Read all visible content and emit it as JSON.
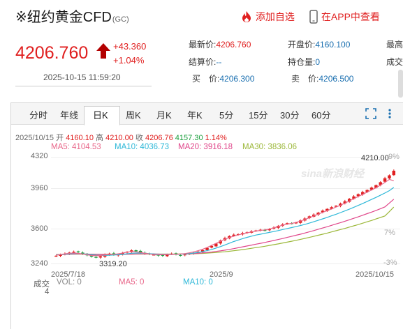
{
  "header": {
    "title": "※纽约黄金CFD",
    "code": "(GC)",
    "add_watch": "添加自选",
    "open_app": "在APP中查看"
  },
  "quote": {
    "price": "4206.760",
    "change": "+43.360",
    "change_pct": "+1.04%",
    "time": "2025-10-15 11:59:20"
  },
  "stats": {
    "latest_label": "最新价:",
    "latest": "4206.760",
    "open_label": "开盘价:",
    "open": "4160.100",
    "high_label": "最高",
    "settle_label": "结算价:",
    "settle": "--",
    "position_label": "持仓量:",
    "position": "0",
    "volume_label": "成交",
    "bid_label": "买　价:",
    "bid": "4206.300",
    "ask_label": "卖　价:",
    "ask": "4206.500"
  },
  "tabs": [
    "分时",
    "年线",
    "日K",
    "周K",
    "月K",
    "年K",
    "5分",
    "15分",
    "30分",
    "60分"
  ],
  "active_tab": "日K",
  "ohlc": {
    "date": "2025/10/15",
    "open_label": "开",
    "open": "4160.10",
    "high_label": "高",
    "high": "4210.00",
    "close_label": "收",
    "close": "4206.76",
    "low": "4157.30",
    "pct": "1.14%"
  },
  "ma": {
    "ma5": "MA5: 4104.53",
    "ma10": "MA10: 4036.73",
    "ma20": "MA20: 3916.18",
    "ma30": "MA30: 3836.06"
  },
  "colors": {
    "up": "#e02020",
    "down": "#1a9e3c",
    "ma5": "#e8678a",
    "ma10": "#2eb8d8",
    "ma20": "#e0468a",
    "ma30": "#9cb83a"
  },
  "chart_data": {
    "type": "candlestick",
    "y_ticks": [
      "4320",
      "3960",
      "3600",
      "3240"
    ],
    "ylim": [
      3240,
      4320
    ],
    "pct_ticks": [
      "9%",
      "7%",
      "-3%"
    ],
    "x_labels": [
      "2025/7/18",
      "2025/9",
      "2025/10/15"
    ],
    "annotations": {
      "max": "4210.00",
      "min": "3319.20"
    },
    "closes": [
      3340,
      3352,
      3360,
      3372,
      3380,
      3375,
      3360,
      3345,
      3330,
      3320,
      3335,
      3350,
      3362,
      3348,
      3355,
      3368,
      3380,
      3395,
      3385,
      3372,
      3360,
      3355,
      3350,
      3345,
      3340,
      3355,
      3362,
      3350,
      3345,
      3352,
      3360,
      3370,
      3382,
      3398,
      3420,
      3440,
      3465,
      3495,
      3520,
      3540,
      3555,
      3560,
      3572,
      3580,
      3590,
      3598,
      3605,
      3600,
      3612,
      3628,
      3645,
      3660,
      3672,
      3668,
      3680,
      3700,
      3720,
      3742,
      3760,
      3780,
      3800,
      3818,
      3835,
      3850,
      3872,
      3895,
      3920,
      3945,
      3968,
      3990,
      4010,
      4035,
      4060,
      4090,
      4130,
      4160,
      4206.76
    ],
    "ma5": [
      3345,
      3352,
      3360,
      3366,
      3368,
      3364,
      3358,
      3350,
      3343,
      3340,
      3343,
      3348,
      3352,
      3354,
      3360,
      3368,
      3377,
      3384,
      3380,
      3374,
      3365,
      3358,
      3352,
      3350,
      3351,
      3352,
      3353,
      3355,
      3358,
      3362,
      3370,
      3380,
      3392,
      3406,
      3424,
      3445,
      3466,
      3488,
      3508,
      3526,
      3540,
      3552,
      3564,
      3574,
      3583,
      3592,
      3598,
      3604,
      3612,
      3624,
      3638,
      3652,
      3662,
      3670,
      3680,
      3694,
      3710,
      3728,
      3746,
      3764,
      3782,
      3800,
      3817,
      3836,
      3855,
      3876,
      3898,
      3922,
      3944,
      3966,
      3988,
      4010,
      4034,
      4060,
      4088,
      4118,
      4104.53
    ],
    "ma10": [
      3348,
      3352,
      3356,
      3360,
      3362,
      3362,
      3360,
      3356,
      3350,
      3346,
      3344,
      3344,
      3346,
      3348,
      3350,
      3354,
      3360,
      3366,
      3368,
      3368,
      3366,
      3362,
      3358,
      3355,
      3354,
      3354,
      3354,
      3355,
      3356,
      3358,
      3362,
      3368,
      3374,
      3382,
      3392,
      3404,
      3418,
      3433,
      3450,
      3468,
      3485,
      3500,
      3515,
      3528,
      3540,
      3551,
      3560,
      3569,
      3578,
      3587,
      3597,
      3607,
      3617,
      3627,
      3637,
      3648,
      3660,
      3673,
      3687,
      3701,
      3716,
      3731,
      3747,
      3763,
      3780,
      3797,
      3815,
      3834,
      3853,
      3873,
      3893,
      3914,
      3935,
      3957,
      3980,
      4004,
      4036.73
    ],
    "ma20": [
      3350,
      3352,
      3354,
      3356,
      3357,
      3358,
      3358,
      3357,
      3356,
      3355,
      3354,
      3353,
      3353,
      3353,
      3353,
      3354,
      3355,
      3357,
      3358,
      3359,
      3359,
      3359,
      3358,
      3357,
      3356,
      3356,
      3356,
      3356,
      3357,
      3358,
      3360,
      3362,
      3365,
      3369,
      3373,
      3378,
      3384,
      3390,
      3397,
      3405,
      3413,
      3422,
      3431,
      3440,
      3449,
      3458,
      3467,
      3476,
      3486,
      3496,
      3506,
      3516,
      3527,
      3538,
      3549,
      3560,
      3572,
      3584,
      3597,
      3610,
      3623,
      3636,
      3650,
      3664,
      3678,
      3692,
      3707,
      3722,
      3737,
      3753,
      3769,
      3785,
      3802,
      3820,
      3838,
      3877,
      3916.18
    ],
    "ma30": [
      3352,
      3353,
      3354,
      3355,
      3356,
      3356,
      3356,
      3356,
      3356,
      3355,
      3355,
      3355,
      3355,
      3355,
      3355,
      3355,
      3356,
      3356,
      3357,
      3357,
      3357,
      3357,
      3357,
      3357,
      3357,
      3357,
      3357,
      3357,
      3358,
      3358,
      3359,
      3360,
      3362,
      3364,
      3367,
      3370,
      3373,
      3377,
      3381,
      3386,
      3391,
      3397,
      3403,
      3409,
      3416,
      3423,
      3430,
      3437,
      3445,
      3453,
      3461,
      3470,
      3479,
      3488,
      3497,
      3507,
      3517,
      3527,
      3538,
      3549,
      3560,
      3571,
      3583,
      3595,
      3607,
      3619,
      3632,
      3645,
      3658,
      3672,
      3686,
      3700,
      3715,
      3730,
      3746,
      3790,
      3836.06
    ]
  },
  "volume": {
    "label": "成交",
    "vol": "VOL: 0",
    "ma5": "MA5: 0",
    "ma10": "MA10: 0",
    "value": "4"
  }
}
